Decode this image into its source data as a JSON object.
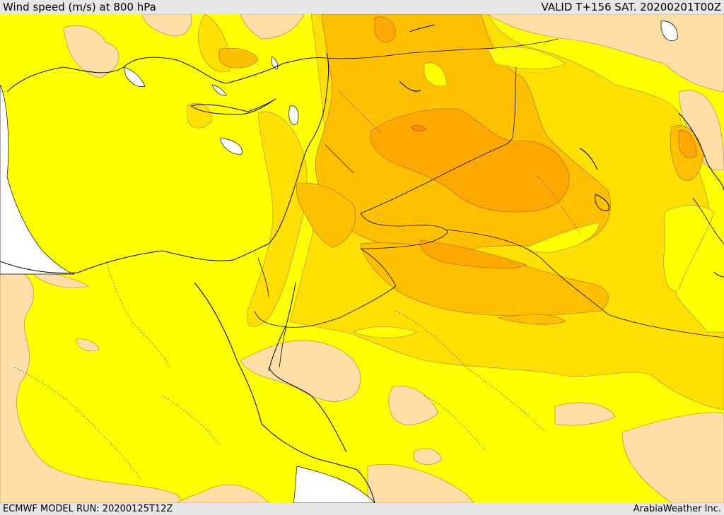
{
  "header": {
    "title": "Wind speed (m/s) at 800 hPa",
    "valid": "VALID T+156 SAT. 20200201T00Z"
  },
  "footer": {
    "model_run": "ECMWF MODEL RUN: 20200125T12Z",
    "provider": "ArabiaWeather Inc."
  },
  "colors": {
    "base_yellow": "#ffff00",
    "light_tan": "#ffdfa5",
    "gold": "#ffe000",
    "light_orange": "#ffc000",
    "orange": "#ffa800",
    "dark_orange": "#ff9a00",
    "water_white": "#ffffff",
    "frame_gray": "#e6e6e6"
  }
}
